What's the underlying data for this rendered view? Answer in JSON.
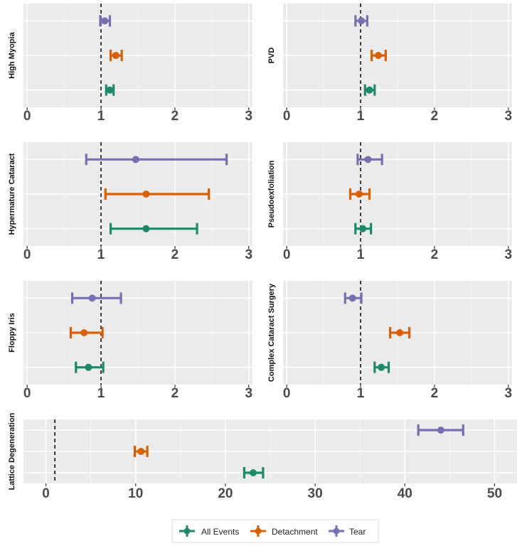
{
  "chart_data": [
    {
      "type": "forest",
      "panel": "High Myopia",
      "ylabel": "High Myopia",
      "xlim": [
        -0.05,
        3.05
      ],
      "xticks": [
        0,
        1,
        2,
        3
      ],
      "reference_line": 1,
      "series": [
        {
          "name": "Tear",
          "estimate": 1.05,
          "lower": 0.99,
          "upper": 1.12
        },
        {
          "name": "Detachment",
          "estimate": 1.2,
          "lower": 1.13,
          "upper": 1.28
        },
        {
          "name": "All Events",
          "estimate": 1.12,
          "lower": 1.07,
          "upper": 1.17
        }
      ]
    },
    {
      "type": "forest",
      "panel": "PVD",
      "ylabel": "PVD",
      "xlim": [
        -0.05,
        3.05
      ],
      "xticks": [
        0,
        1,
        2,
        3
      ],
      "reference_line": 1,
      "series": [
        {
          "name": "Tear",
          "estimate": 1.01,
          "lower": 0.93,
          "upper": 1.09
        },
        {
          "name": "Detachment",
          "estimate": 1.24,
          "lower": 1.15,
          "upper": 1.34
        },
        {
          "name": "All Events",
          "estimate": 1.12,
          "lower": 1.06,
          "upper": 1.19
        }
      ]
    },
    {
      "type": "forest",
      "panel": "Hypermature Cataract",
      "ylabel": "Hypermature Cataract",
      "xlim": [
        -0.05,
        3.05
      ],
      "xticks": [
        0,
        1,
        2,
        3
      ],
      "reference_line": 1,
      "series": [
        {
          "name": "Tear",
          "estimate": 1.47,
          "lower": 0.8,
          "upper": 2.7
        },
        {
          "name": "Detachment",
          "estimate": 1.61,
          "lower": 1.06,
          "upper": 2.46
        },
        {
          "name": "All Events",
          "estimate": 1.61,
          "lower": 1.13,
          "upper": 2.3
        }
      ]
    },
    {
      "type": "forest",
      "panel": "Pseudoexfoliation",
      "ylabel": "Pseudoexfoliation",
      "xlim": [
        -0.05,
        3.05
      ],
      "xticks": [
        0,
        1,
        2,
        3
      ],
      "reference_line": 1,
      "series": [
        {
          "name": "Tear",
          "estimate": 1.1,
          "lower": 0.96,
          "upper": 1.29
        },
        {
          "name": "Detachment",
          "estimate": 0.98,
          "lower": 0.86,
          "upper": 1.12
        },
        {
          "name": "All Events",
          "estimate": 1.03,
          "lower": 0.93,
          "upper": 1.14
        }
      ]
    },
    {
      "type": "forest",
      "panel": "Floppy Iris",
      "ylabel": "Floppy Iris",
      "xlim": [
        -0.05,
        3.05
      ],
      "xticks": [
        0,
        1,
        2,
        3
      ],
      "reference_line": 1,
      "series": [
        {
          "name": "Tear",
          "estimate": 0.88,
          "lower": 0.61,
          "upper": 1.27
        },
        {
          "name": "Detachment",
          "estimate": 0.77,
          "lower": 0.59,
          "upper": 1.02
        },
        {
          "name": "All Events",
          "estimate": 0.83,
          "lower": 0.66,
          "upper": 1.03
        }
      ]
    },
    {
      "type": "forest",
      "panel": "Complex Cataract Surgery",
      "ylabel": "Complex Cataract Surgery",
      "xlim": [
        -0.05,
        3.05
      ],
      "xticks": [
        0,
        1,
        2,
        3
      ],
      "reference_line": 1,
      "series": [
        {
          "name": "Tear",
          "estimate": 0.89,
          "lower": 0.79,
          "upper": 1.01
        },
        {
          "name": "Detachment",
          "estimate": 1.53,
          "lower": 1.4,
          "upper": 1.66
        },
        {
          "name": "All Events",
          "estimate": 1.28,
          "lower": 1.19,
          "upper": 1.38
        }
      ]
    },
    {
      "type": "forest",
      "panel": "Lattice Degeneration",
      "ylabel": "Lattice Degeneration",
      "xlim": [
        -2.5,
        52.5
      ],
      "xticks": [
        0,
        10,
        20,
        30,
        40,
        50
      ],
      "reference_line": 1,
      "series": [
        {
          "name": "Tear",
          "estimate": 44.0,
          "lower": 41.5,
          "upper": 46.5
        },
        {
          "name": "Detachment",
          "estimate": 10.6,
          "lower": 9.9,
          "upper": 11.3
        },
        {
          "name": "All Events",
          "estimate": 23.1,
          "lower": 22.1,
          "upper": 24.2
        }
      ]
    }
  ],
  "legend": {
    "items": [
      {
        "name": "All Events",
        "color": "#1b8a6b"
      },
      {
        "name": "Detachment",
        "color": "#d95f02"
      },
      {
        "name": "Tear",
        "color": "#7570b3"
      }
    ]
  },
  "colors": {
    "All Events": "#1b8a6b",
    "Detachment": "#d95f02",
    "Tear": "#7570b3",
    "panel_background": "#ebebeb",
    "grid": "#ffffff"
  }
}
